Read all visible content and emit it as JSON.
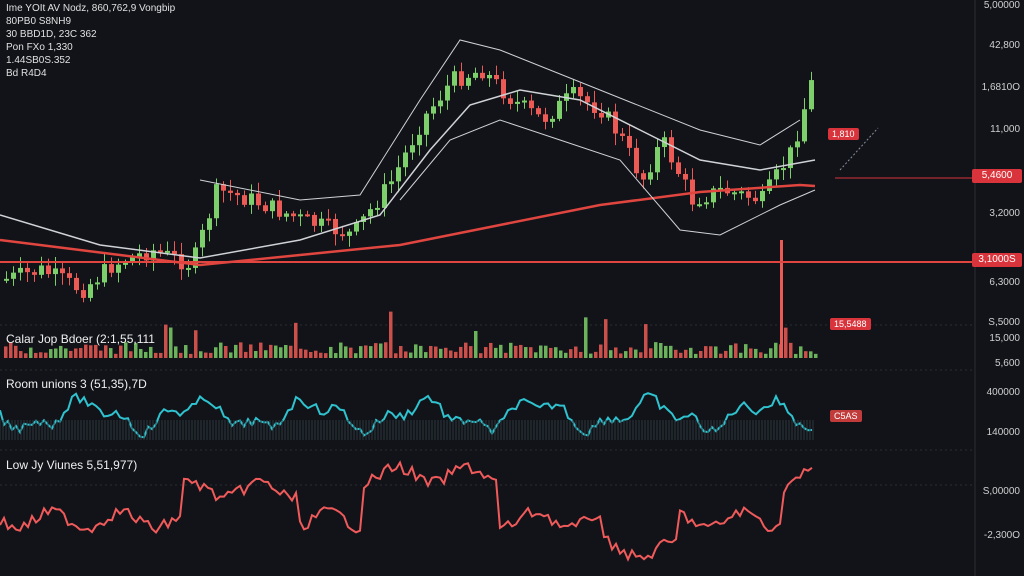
{
  "header": {
    "lines": [
      "Ime YOIt AV Nodz, 860,762,9 Vongbip",
      "80PB0 S8NH9",
      "30 BBD1D, 23C 362",
      "Pon  FXo 1,330",
      "1.44SB0S.352",
      "Bd R4D4"
    ]
  },
  "panels": {
    "volume_label": "Calar Jop Bdoer  (2:1,55,111",
    "oscillator_label": "Room unions 3  (51,35),7D",
    "low_volume_label": "Low Jy Viunes 5,51,977)"
  },
  "price_axis": {
    "labels": [
      "5,00000",
      "42,800",
      "1,6810O",
      "11,000",
      "3,2000",
      "6,3000",
      "S,5000"
    ],
    "tags": [
      "5,4600",
      "3,1000S"
    ]
  },
  "volume_axis": {
    "labels": [
      "15,000",
      "5,600"
    ]
  },
  "oscillator_axis": {
    "labels": [
      "400000",
      "140000"
    ]
  },
  "low_axis": {
    "labels": [
      "S,00000",
      "-2,300O"
    ]
  },
  "inline_tags": {
    "price": "1,810",
    "volume": "15,5488",
    "oscillator": "C5AS"
  },
  "colors": {
    "background": "#111318",
    "bull": "#7ccf6a",
    "bear": "#ec5a55",
    "ma_red": "#e0463f",
    "ma_white": "#cfd2d6",
    "oscillator": "#2fc2cf",
    "low_line": "#f05a5a",
    "tag_red": "#d9333b"
  }
}
